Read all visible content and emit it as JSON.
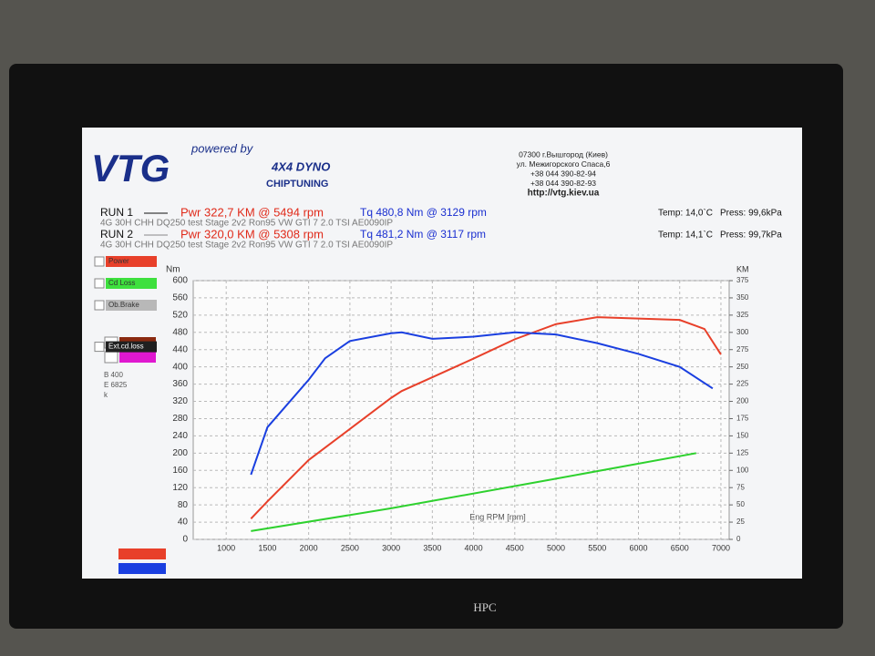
{
  "header": {
    "tagline": "powered by",
    "logo": "VTG",
    "product": "4X4 DYNO",
    "service": "CHIPTUNING",
    "address": [
      "07300 г.Вышгород (Киев)",
      "ул. Межигорского Спаса,6",
      "+38 044 390-82-94",
      "+38 044 390-82-93",
      "http://vtg.kiev.ua"
    ]
  },
  "runs": [
    {
      "name": "RUN 1",
      "power": "Pwr  322,7 KM @ 5494 rpm",
      "torque": "Tq 480,8 Nm @ 3129 rpm",
      "temp": "Temp: 14,0`C",
      "press": "Press: 99,6kPa",
      "info": "4G 30H  CHH DQ250  test Stage 2v2 Ron95 VW GTI 7 2.0 TSI AE0090IP"
    },
    {
      "name": "RUN 2",
      "power": "Pwr  320,0 KM @ 5308 rpm",
      "torque": "Tq 481,2 Nm @ 3117 rpm",
      "temp": "Temp: 14,1`C",
      "press": "Press: 99,7kPa",
      "info": "4G 30H  CHH DQ250  test Stage 2v2 Ron95 VW GTI 7 2.0 TSI AE0090IP"
    }
  ],
  "panel": {
    "items": [
      {
        "label": "Power",
        "color": "#e8402a"
      },
      {
        "label": "Cd Loss",
        "color": "#3ee03e"
      },
      {
        "label": "Ob.Brake",
        "color": "#b8b8b8"
      },
      {
        "label": "Ext.cd.loss",
        "color": "#202020"
      }
    ],
    "notes": [
      "B 400",
      "E 6825",
      "k"
    ]
  },
  "monitor_brand": "HPC",
  "chart_data": {
    "type": "line",
    "ylabel": "Nm",
    "y2label": "KM",
    "xlabel": "Eng RPM [rpm]",
    "xlim": [
      600,
      7100
    ],
    "xticks": [
      1000,
      1500,
      2000,
      2500,
      3000,
      3500,
      4000,
      4500,
      5000,
      5500,
      6000,
      6500,
      7000
    ],
    "ylim": [
      0,
      600
    ],
    "yticks": [
      0,
      40,
      80,
      120,
      160,
      200,
      240,
      280,
      320,
      360,
      400,
      440,
      480,
      520,
      560,
      600
    ],
    "y2lim": [
      0,
      375
    ],
    "y2ticks": [
      0,
      25,
      50,
      75,
      100,
      125,
      150,
      175,
      200,
      225,
      250,
      275,
      300,
      325,
      350,
      375
    ],
    "grid": true,
    "series": [
      {
        "name": "Power",
        "color": "#e8402a",
        "axis": "y2",
        "x": [
          1300,
          1500,
          2000,
          2500,
          3000,
          3129,
          3500,
          4000,
          4500,
          5000,
          5500,
          6000,
          6500,
          6800,
          7000
        ],
        "values": [
          30,
          55,
          115,
          160,
          205,
          215,
          235,
          262,
          290,
          312,
          322,
          320,
          318,
          305,
          268
        ]
      },
      {
        "name": "Torque",
        "color": "#1a3fe0",
        "axis": "y",
        "x": [
          1300,
          1500,
          2000,
          2200,
          2500,
          3000,
          3129,
          3500,
          4000,
          4500,
          5000,
          5500,
          6000,
          6500,
          6900
        ],
        "values": [
          150,
          260,
          370,
          420,
          460,
          478,
          480,
          465,
          470,
          480,
          475,
          455,
          430,
          400,
          350
        ]
      },
      {
        "name": "Cd Loss",
        "color": "#2ed12e",
        "axis": "y2",
        "x": [
          1300,
          3000,
          5000,
          6700
        ],
        "values": [
          12,
          45,
          88,
          125
        ]
      }
    ]
  }
}
